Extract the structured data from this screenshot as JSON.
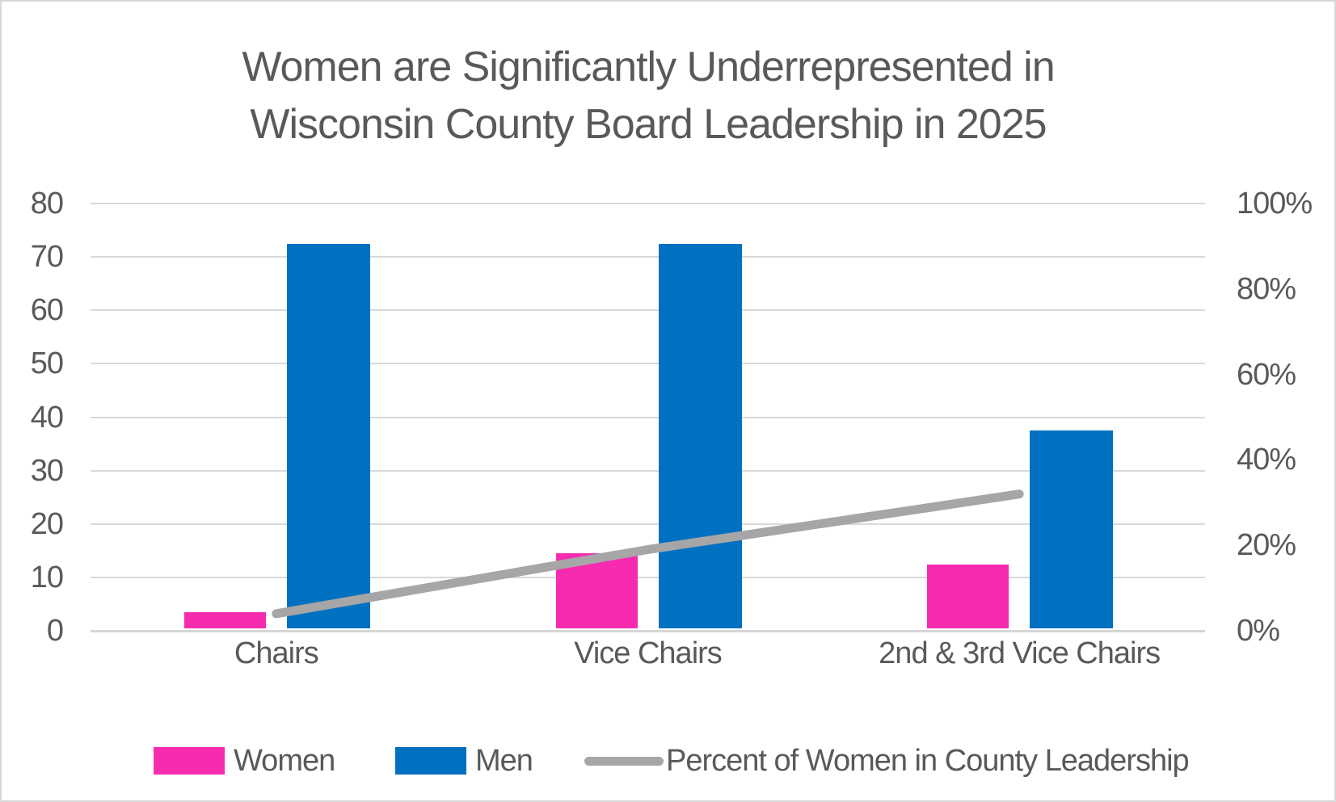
{
  "title": {
    "line1": "Women are Significantly Underrepresented in",
    "line2": "Wisconsin County Board Leadership in 2025"
  },
  "colors": {
    "women_bar": "#F72BB0",
    "men_bar": "#0070C0",
    "percent_line": "#A6A6A6",
    "text": "#595959",
    "gridline": "#D9D9D9"
  },
  "chart_data": {
    "type": "bar",
    "subtype": "combo-bar-line-dual-axis",
    "title": "Women are Significantly Underrepresented in Wisconsin County Board Leadership in 2025",
    "categories": [
      "Chairs",
      "Vice Chairs",
      "2nd & 3rd Vice Chairs"
    ],
    "series": [
      {
        "name": "Women",
        "type": "bar",
        "axis": "left",
        "color": "#F72BB0",
        "values": [
          3,
          14,
          12
        ]
      },
      {
        "name": "Men",
        "type": "bar",
        "axis": "left",
        "color": "#0070C0",
        "values": [
          72,
          72,
          37
        ]
      },
      {
        "name": "Percent of Women in County Leadership",
        "type": "line",
        "axis": "right",
        "color": "#A6A6A6",
        "values_percent": [
          4,
          19,
          32
        ]
      }
    ],
    "left_axis": {
      "min": 0,
      "max": 80,
      "step": 10,
      "tick_labels": [
        "0",
        "10",
        "20",
        "30",
        "40",
        "50",
        "60",
        "70",
        "80"
      ]
    },
    "right_axis": {
      "min": 0,
      "max": 100,
      "step": 20,
      "tick_labels": [
        "0%",
        "20%",
        "40%",
        "60%",
        "80%",
        "100%"
      ]
    },
    "grid": true,
    "legend_position": "bottom"
  }
}
